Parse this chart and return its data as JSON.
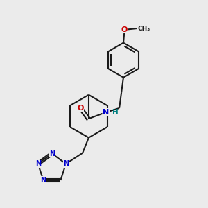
{
  "background_color": "#ebebeb",
  "bond_color": "#1a1a1a",
  "nitrogen_color": "#0000cc",
  "oxygen_color": "#cc0000",
  "hydrogen_color": "#008080",
  "line_width": 1.5,
  "figsize": [
    3.0,
    3.0
  ],
  "dpi": 100,
  "xlim": [
    0,
    1
  ],
  "ylim": [
    0,
    1
  ]
}
